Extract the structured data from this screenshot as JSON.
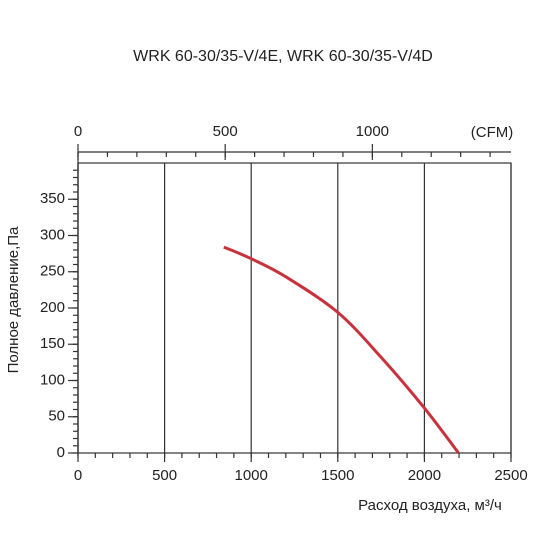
{
  "chart_data": {
    "type": "line",
    "title": "WRK 60-30/35-V/4E, WRK 60-30/35-V/4D",
    "xlabel": "Расход воздуха, м³/ч",
    "ylabel": "Полное давление,Па",
    "x": [
      842,
      1000,
      1200,
      1500,
      1750,
      2000,
      2197
    ],
    "values": [
      284,
      268,
      243,
      194,
      132,
      62,
      0
    ],
    "color": "#c8323c",
    "xlim": [
      0,
      2500
    ],
    "xticks": [
      0,
      500,
      1000,
      1500,
      2000,
      2500
    ],
    "ylim": [
      0,
      400
    ],
    "yticks": [
      0,
      50,
      100,
      150,
      200,
      250,
      300,
      350
    ],
    "x2lim": [
      0,
      1471
    ],
    "x2ticks": [
      0,
      500,
      1000
    ],
    "x2label": "(CFM)",
    "grid": true
  }
}
